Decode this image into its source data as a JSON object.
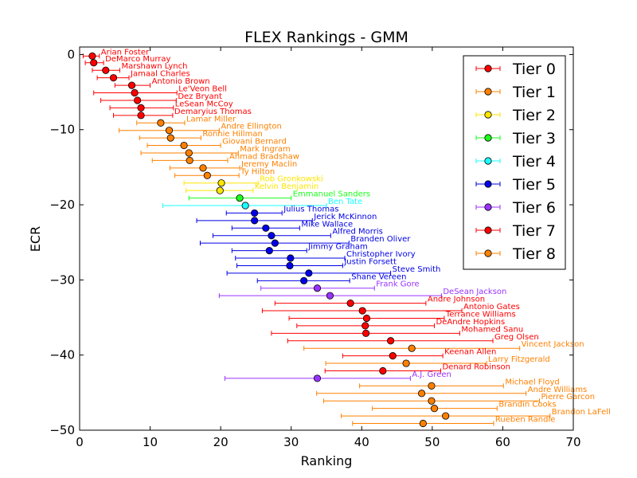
{
  "chart_data": {
    "type": "scatter",
    "title": "FLEX Rankings - GMM",
    "xlabel": "Ranking",
    "ylabel": "ECR",
    "xlim": [
      0,
      70
    ],
    "ylim": [
      -50,
      1
    ],
    "xticks": [
      0,
      10,
      20,
      30,
      40,
      50,
      60,
      70
    ],
    "yticks": [
      0,
      -10,
      -20,
      -30,
      -40,
      -50
    ],
    "xtick_labels": [
      "0",
      "10",
      "20",
      "30",
      "40",
      "50",
      "60",
      "70"
    ],
    "ytick_labels": [
      "0",
      "−10",
      "−20",
      "−30",
      "−40",
      "−50"
    ],
    "grid": false,
    "legend_position": "top-right",
    "tiers": [
      {
        "name": "Tier 0",
        "color": "#ff0000"
      },
      {
        "name": "Tier 1",
        "color": "#ff8000"
      },
      {
        "name": "Tier 2",
        "color": "#ffe600"
      },
      {
        "name": "Tier 3",
        "color": "#1aff1a"
      },
      {
        "name": "Tier 4",
        "color": "#1affff"
      },
      {
        "name": "Tier 5",
        "color": "#0000e6"
      },
      {
        "name": "Tier 6",
        "color": "#9933ff"
      },
      {
        "name": "Tier 7",
        "color": "#ff0000"
      },
      {
        "name": "Tier 8",
        "color": "#ff8000"
      }
    ],
    "players": [
      {
        "name": "Arian Foster",
        "tier": 0,
        "x": 1.8,
        "y": -0.2,
        "lo": 0.5,
        "hi": 2.8
      },
      {
        "name": "DeMarco Murray",
        "tier": 0,
        "x": 2.0,
        "y": -1.1,
        "lo": 0.8,
        "hi": 3.4
      },
      {
        "name": "Marshawn Lynch",
        "tier": 0,
        "x": 3.7,
        "y": -2.1,
        "lo": 1.8,
        "hi": 5.7
      },
      {
        "name": "Jamaal Charles",
        "tier": 0,
        "x": 4.8,
        "y": -3.1,
        "lo": 2.5,
        "hi": 7.0
      },
      {
        "name": "Antonio Brown",
        "tier": 0,
        "x": 7.4,
        "y": -4.1,
        "lo": 5.0,
        "hi": 10.0
      },
      {
        "name": "Le'Veon Bell",
        "tier": 0,
        "x": 7.8,
        "y": -5.1,
        "lo": 2.0,
        "hi": 13.8
      },
      {
        "name": "Dez Bryant",
        "tier": 0,
        "x": 8.2,
        "y": -6.1,
        "lo": 3.0,
        "hi": 13.7
      },
      {
        "name": "LeSean McCoy",
        "tier": 0,
        "x": 8.7,
        "y": -7.1,
        "lo": 4.3,
        "hi": 13.3
      },
      {
        "name": "Demaryius Thomas",
        "tier": 0,
        "x": 8.7,
        "y": -8.1,
        "lo": 4.8,
        "hi": 13.2
      },
      {
        "name": "Lamar Miller",
        "tier": 1,
        "x": 11.5,
        "y": -9.1,
        "lo": 8.1,
        "hi": 14.9
      },
      {
        "name": "Andre Ellington",
        "tier": 1,
        "x": 12.7,
        "y": -10.1,
        "lo": 5.6,
        "hi": 19.8
      },
      {
        "name": "Ronnie Hillman",
        "tier": 1,
        "x": 12.9,
        "y": -11.1,
        "lo": 8.5,
        "hi": 17.2
      },
      {
        "name": "Giovani Bernard",
        "tier": 1,
        "x": 14.8,
        "y": -12.1,
        "lo": 9.6,
        "hi": 20.0
      },
      {
        "name": "Mark Ingram",
        "tier": 1,
        "x": 15.5,
        "y": -13.1,
        "lo": 8.7,
        "hi": 22.5
      },
      {
        "name": "Ahmad Bradshaw",
        "tier": 1,
        "x": 15.6,
        "y": -14.1,
        "lo": 10.3,
        "hi": 21.0
      },
      {
        "name": "Jeremy Maclin",
        "tier": 1,
        "x": 17.5,
        "y": -15.1,
        "lo": 12.8,
        "hi": 22.7
      },
      {
        "name": "Ty Hilton",
        "tier": 1,
        "x": 18.1,
        "y": -16.1,
        "lo": 13.5,
        "hi": 22.6
      },
      {
        "name": "Rob Gronkowski",
        "tier": 2,
        "x": 20.1,
        "y": -17.1,
        "lo": 14.8,
        "hi": 25.3
      },
      {
        "name": "Kelvin Benjamin",
        "tier": 2,
        "x": 19.9,
        "y": -18.1,
        "lo": 15.1,
        "hi": 24.6
      },
      {
        "name": "Emmanuel Sanders",
        "tier": 3,
        "x": 22.7,
        "y": -19.1,
        "lo": 15.5,
        "hi": 30.0
      },
      {
        "name": "Ben Tate",
        "tier": 4,
        "x": 23.5,
        "y": -20.1,
        "lo": 11.8,
        "hi": 35.0
      },
      {
        "name": "Julius Thomas",
        "tier": 5,
        "x": 24.8,
        "y": -21.1,
        "lo": 20.8,
        "hi": 28.7
      },
      {
        "name": "Jerick McKinnon",
        "tier": 5,
        "x": 24.8,
        "y": -22.1,
        "lo": 16.6,
        "hi": 33.0
      },
      {
        "name": "Mike Wallace",
        "tier": 5,
        "x": 26.4,
        "y": -23.1,
        "lo": 21.6,
        "hi": 31.2
      },
      {
        "name": "Alfred Morris",
        "tier": 5,
        "x": 27.2,
        "y": -24.1,
        "lo": 18.9,
        "hi": 35.6
      },
      {
        "name": "Branden Oliver",
        "tier": 5,
        "x": 27.7,
        "y": -25.1,
        "lo": 17.1,
        "hi": 38.2
      },
      {
        "name": "Jimmy Graham",
        "tier": 5,
        "x": 26.9,
        "y": -26.1,
        "lo": 21.6,
        "hi": 32.2
      },
      {
        "name": "Christopher Ivory",
        "tier": 5,
        "x": 29.9,
        "y": -27.1,
        "lo": 22.1,
        "hi": 37.6
      },
      {
        "name": "Justin Forsett",
        "tier": 5,
        "x": 29.8,
        "y": -28.1,
        "lo": 22.3,
        "hi": 37.3
      },
      {
        "name": "Steve Smith",
        "tier": 5,
        "x": 32.5,
        "y": -29.1,
        "lo": 20.9,
        "hi": 44.1
      },
      {
        "name": "Shane Vereen",
        "tier": 5,
        "x": 31.8,
        "y": -30.1,
        "lo": 25.2,
        "hi": 38.3
      },
      {
        "name": "Frank Gore",
        "tier": 6,
        "x": 33.7,
        "y": -31.1,
        "lo": 25.7,
        "hi": 41.8
      },
      {
        "name": "DeSean Jackson",
        "tier": 6,
        "x": 35.5,
        "y": -32.1,
        "lo": 19.8,
        "hi": 51.3
      },
      {
        "name": "Andre Johnson",
        "tier": 7,
        "x": 38.4,
        "y": -33.1,
        "lo": 27.7,
        "hi": 49.1
      },
      {
        "name": "Antonio Gates",
        "tier": 7,
        "x": 40.1,
        "y": -34.1,
        "lo": 25.9,
        "hi": 54.2
      },
      {
        "name": "Terrance Williams",
        "tier": 7,
        "x": 40.7,
        "y": -35.1,
        "lo": 29.7,
        "hi": 51.7
      },
      {
        "name": "DeAndre Hopkins",
        "tier": 7,
        "x": 40.5,
        "y": -36.1,
        "lo": 30.8,
        "hi": 50.3
      },
      {
        "name": "Mohamed Sanu",
        "tier": 7,
        "x": 40.6,
        "y": -37.1,
        "lo": 27.2,
        "hi": 53.9
      },
      {
        "name": "Greg Olsen",
        "tier": 7,
        "x": 44.1,
        "y": -38.1,
        "lo": 29.5,
        "hi": 58.6
      },
      {
        "name": "Vincent Jackson",
        "tier": 8,
        "x": 47.1,
        "y": -39.1,
        "lo": 31.8,
        "hi": 62.4
      },
      {
        "name": "Keenan Allen",
        "tier": 7,
        "x": 44.4,
        "y": -40.1,
        "lo": 37.3,
        "hi": 51.5
      },
      {
        "name": "Larry Fitzgerald",
        "tier": 8,
        "x": 46.3,
        "y": -41.1,
        "lo": 34.9,
        "hi": 57.7
      },
      {
        "name": "Denard Robinson",
        "tier": 7,
        "x": 43.0,
        "y": -42.1,
        "lo": 34.8,
        "hi": 51.2
      },
      {
        "name": "A.J. Green",
        "tier": 6,
        "x": 33.7,
        "y": -43.1,
        "lo": 20.6,
        "hi": 46.9
      },
      {
        "name": "Michael Floyd",
        "tier": 8,
        "x": 49.9,
        "y": -44.1,
        "lo": 39.7,
        "hi": 60.1
      },
      {
        "name": "Andre Williams",
        "tier": 8,
        "x": 48.5,
        "y": -45.1,
        "lo": 33.6,
        "hi": 63.3
      },
      {
        "name": "Pierre Garcon",
        "tier": 8,
        "x": 49.9,
        "y": -46.1,
        "lo": 34.6,
        "hi": 65.2
      },
      {
        "name": "Brandin Cooks",
        "tier": 8,
        "x": 50.3,
        "y": -47.1,
        "lo": 41.5,
        "hi": 59.2
      },
      {
        "name": "Brandon LaFell",
        "tier": 8,
        "x": 51.9,
        "y": -48.1,
        "lo": 37.1,
        "hi": 66.7
      },
      {
        "name": "Rueben Randle",
        "tier": 8,
        "x": 48.7,
        "y": -49.1,
        "lo": 38.7,
        "hi": 58.7
      }
    ]
  }
}
